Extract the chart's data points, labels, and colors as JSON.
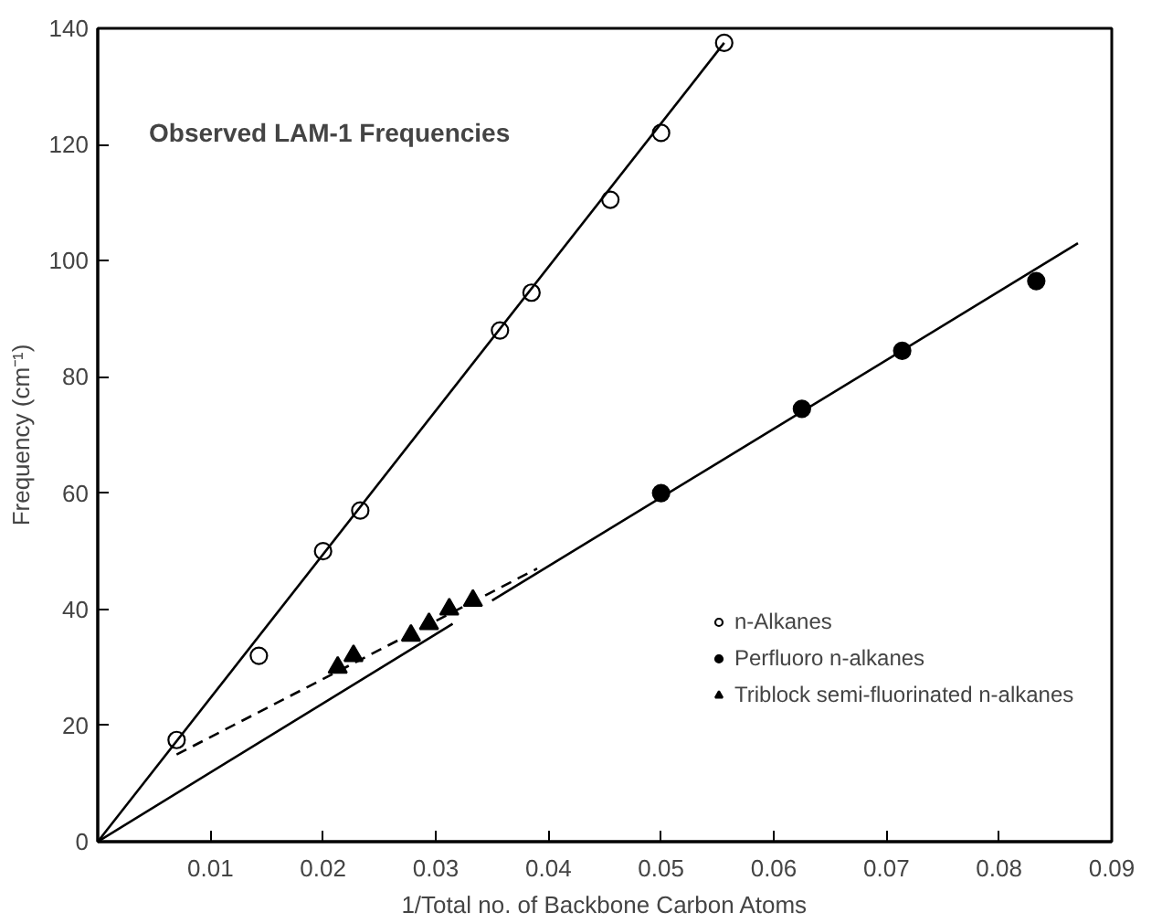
{
  "chart_data": {
    "type": "scatter",
    "title": "Observed LAM-1 Frequencies",
    "xlabel": "1/Total no. of Backbone Carbon Atoms",
    "ylabel": "Frequency (cm⁻¹)",
    "xlim": [
      0,
      0.09
    ],
    "ylim": [
      0,
      140
    ],
    "xticks": [
      0.01,
      0.02,
      0.03,
      0.04,
      0.05,
      0.06,
      0.07,
      0.08,
      0.09
    ],
    "yticks": [
      0,
      20,
      40,
      60,
      80,
      100,
      120,
      140
    ],
    "grid": false,
    "legend": "right",
    "series": [
      {
        "name": "n-Alkanes",
        "marker": "circle",
        "color": "#ffffff",
        "x": [
          0.007,
          0.0143,
          0.02,
          0.0233,
          0.0357,
          0.0385,
          0.0455,
          0.05,
          0.0556
        ],
        "values": [
          17.5,
          32,
          50,
          57,
          88,
          94.5,
          110.5,
          122,
          137.5
        ]
      },
      {
        "name": "Perfluoro n-alkanes",
        "marker": "circle",
        "color": "#000000",
        "x": [
          0.05,
          0.0625,
          0.0714,
          0.0833
        ],
        "values": [
          60,
          74.5,
          84.5,
          96.5
        ]
      },
      {
        "name": "Triblock semi-fluorinated n-alkanes",
        "marker": "triangle",
        "color": "#000000",
        "x": [
          0.0213,
          0.0227,
          0.0278,
          0.0294,
          0.0312,
          0.0333
        ],
        "values": [
          30,
          32,
          35.5,
          37.5,
          40,
          41.5
        ]
      },
      {
        "type": "line",
        "marker": "none",
        "line_style": "solid",
        "color": "#000000",
        "x": [
          0,
          0.0556
        ],
        "values": [
          0,
          137.5
        ]
      },
      {
        "type": "line",
        "marker": "none",
        "line_style": "solid",
        "color": "#000000",
        "x": [
          0,
          0.0315,
          0.033,
          0.035,
          0.087
        ],
        "values": [
          0,
          37.5,
          null,
          41.5,
          103
        ]
      },
      {
        "type": "line",
        "marker": "none",
        "line_style": "dashed",
        "color": "#000000",
        "x": [
          0.007,
          0.039
        ],
        "values": [
          15,
          47
        ]
      }
    ]
  }
}
